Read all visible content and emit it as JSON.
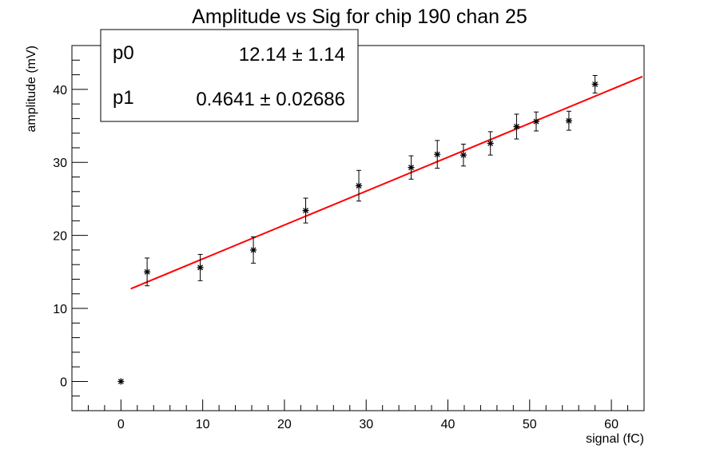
{
  "chart_data": {
    "type": "scatter",
    "title": "Amplitude vs Sig for chip 190 chan 25",
    "xlabel": "signal (fC)",
    "ylabel": "amplitude (mV)",
    "xlim": [
      -6,
      64
    ],
    "ylim": [
      -4,
      46
    ],
    "x_ticks": [
      0,
      10,
      20,
      30,
      40,
      50,
      60
    ],
    "y_ticks": [
      0,
      10,
      20,
      30,
      40
    ],
    "grid": false,
    "legend": "none",
    "points": [
      {
        "x": 0.0,
        "y": 0.0,
        "err": 0.0
      },
      {
        "x": 3.2,
        "y": 15.0,
        "err": 1.9
      },
      {
        "x": 9.7,
        "y": 15.6,
        "err": 1.8
      },
      {
        "x": 16.2,
        "y": 18.0,
        "err": 1.8
      },
      {
        "x": 22.6,
        "y": 23.4,
        "err": 1.7
      },
      {
        "x": 29.1,
        "y": 26.8,
        "err": 2.1
      },
      {
        "x": 35.5,
        "y": 29.3,
        "err": 1.6
      },
      {
        "x": 38.7,
        "y": 31.1,
        "err": 1.9
      },
      {
        "x": 41.9,
        "y": 31.0,
        "err": 1.5
      },
      {
        "x": 45.2,
        "y": 32.6,
        "err": 1.6
      },
      {
        "x": 48.4,
        "y": 34.9,
        "err": 1.7
      },
      {
        "x": 50.8,
        "y": 35.6,
        "err": 1.3
      },
      {
        "x": 54.8,
        "y": 35.7,
        "err": 1.3
      },
      {
        "x": 58.0,
        "y": 40.7,
        "err": 1.2
      }
    ],
    "fit": {
      "x_range": [
        1.2,
        63.8
      ],
      "color": "#ff0000",
      "params": [
        {
          "name": "p0",
          "value": 12.14,
          "error": 1.14,
          "display": "12.14 ±  1.14"
        },
        {
          "name": "p1",
          "value": 0.4641,
          "error": 0.02686,
          "display": "0.4641 ± 0.02686"
        }
      ]
    },
    "marker_color": "#000000"
  }
}
